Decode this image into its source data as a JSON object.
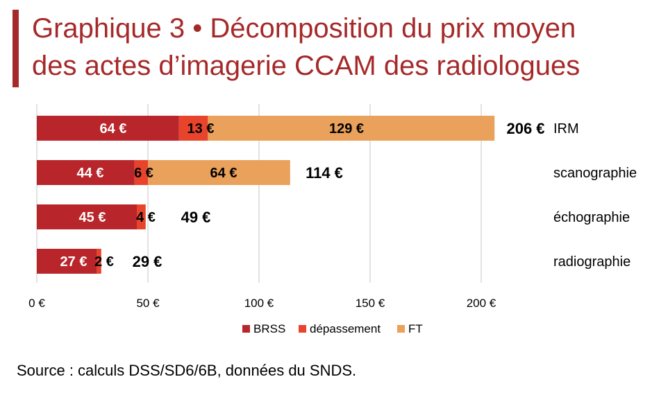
{
  "header": {
    "title_line1": "Graphique 3  •  Décomposition du prix moyen",
    "title_line2": "des actes d’imagerie CCAM des radiologues"
  },
  "footer": {
    "source": "Source : calculs DSS/SD6/6B, données du SNDS."
  },
  "colors": {
    "BRSS": "#b8252a",
    "dépassement": "#e8442c",
    "FT": "#e9a15b",
    "title": "#a6292a",
    "grid": "#d9d9d9"
  },
  "chart_data": {
    "type": "bar",
    "orientation": "horizontal",
    "stacked": true,
    "categories": [
      "IRM",
      "scanographie",
      "échographie",
      "radiographie"
    ],
    "series": [
      {
        "name": "BRSS",
        "values": [
          64,
          44,
          45,
          27
        ],
        "labels": [
          "64 €",
          "44 €",
          "45 €",
          "27 €"
        ]
      },
      {
        "name": "dépassement",
        "values": [
          13,
          6,
          4,
          2
        ],
        "labels": [
          "13 €",
          "6 €",
          "4 €",
          "2 €"
        ]
      },
      {
        "name": "FT",
        "values": [
          129,
          64,
          0,
          0
        ],
        "labels": [
          "129 €",
          "64 €",
          "",
          ""
        ]
      }
    ],
    "totals": [
      206,
      114,
      49,
      29
    ],
    "total_labels": [
      "206 €",
      "114 €",
      "49 €",
      "29 €"
    ],
    "xlim": [
      0,
      200
    ],
    "xticks": [
      0,
      50,
      100,
      150,
      200
    ],
    "xtick_labels": [
      "0 €",
      "50 €",
      "100 €",
      "150 €",
      "200 €"
    ],
    "grid": true,
    "legend_position": "bottom"
  }
}
